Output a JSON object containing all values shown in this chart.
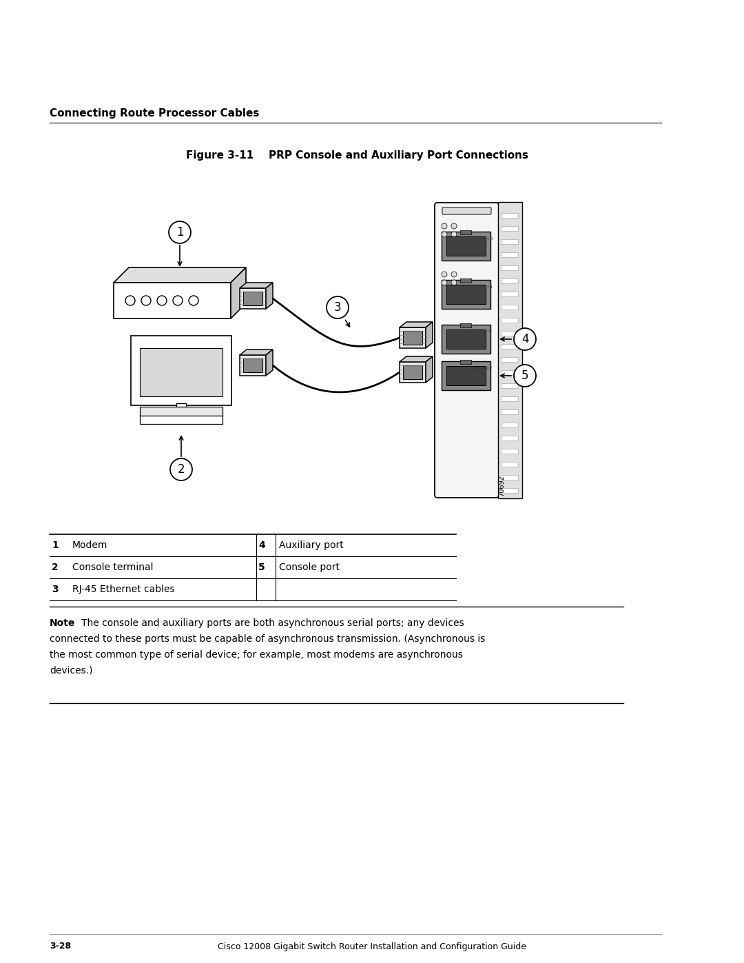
{
  "bg_color": "#ffffff",
  "section_title": "Connecting Route Processor Cables",
  "figure_label": "Figure 3-11",
  "figure_title": "PRP Console and Auxiliary Port Connections",
  "table_rows": [
    {
      "num": "1",
      "label": "Modem",
      "num2": "4",
      "label2": "Auxiliary port"
    },
    {
      "num": "2",
      "label": "Console terminal",
      "num2": "5",
      "label2": "Console port"
    },
    {
      "num": "3",
      "label": "RJ-45 Ethernet cables",
      "num2": "",
      "label2": ""
    }
  ],
  "note_bold": "Note",
  "note_lines": [
    "The console and auxiliary ports are both asynchronous serial ports; any devices",
    "connected to these ports must be capable of asynchronous transmission. (Asynchronous is",
    "the most common type of serial device; for example, most modems are asynchronous",
    "devices.)"
  ],
  "footer_left": "3-28",
  "footer_right": "Cisco 12008 Gigabit Switch Router Installation and Configuration Guide",
  "image_id": "70692"
}
